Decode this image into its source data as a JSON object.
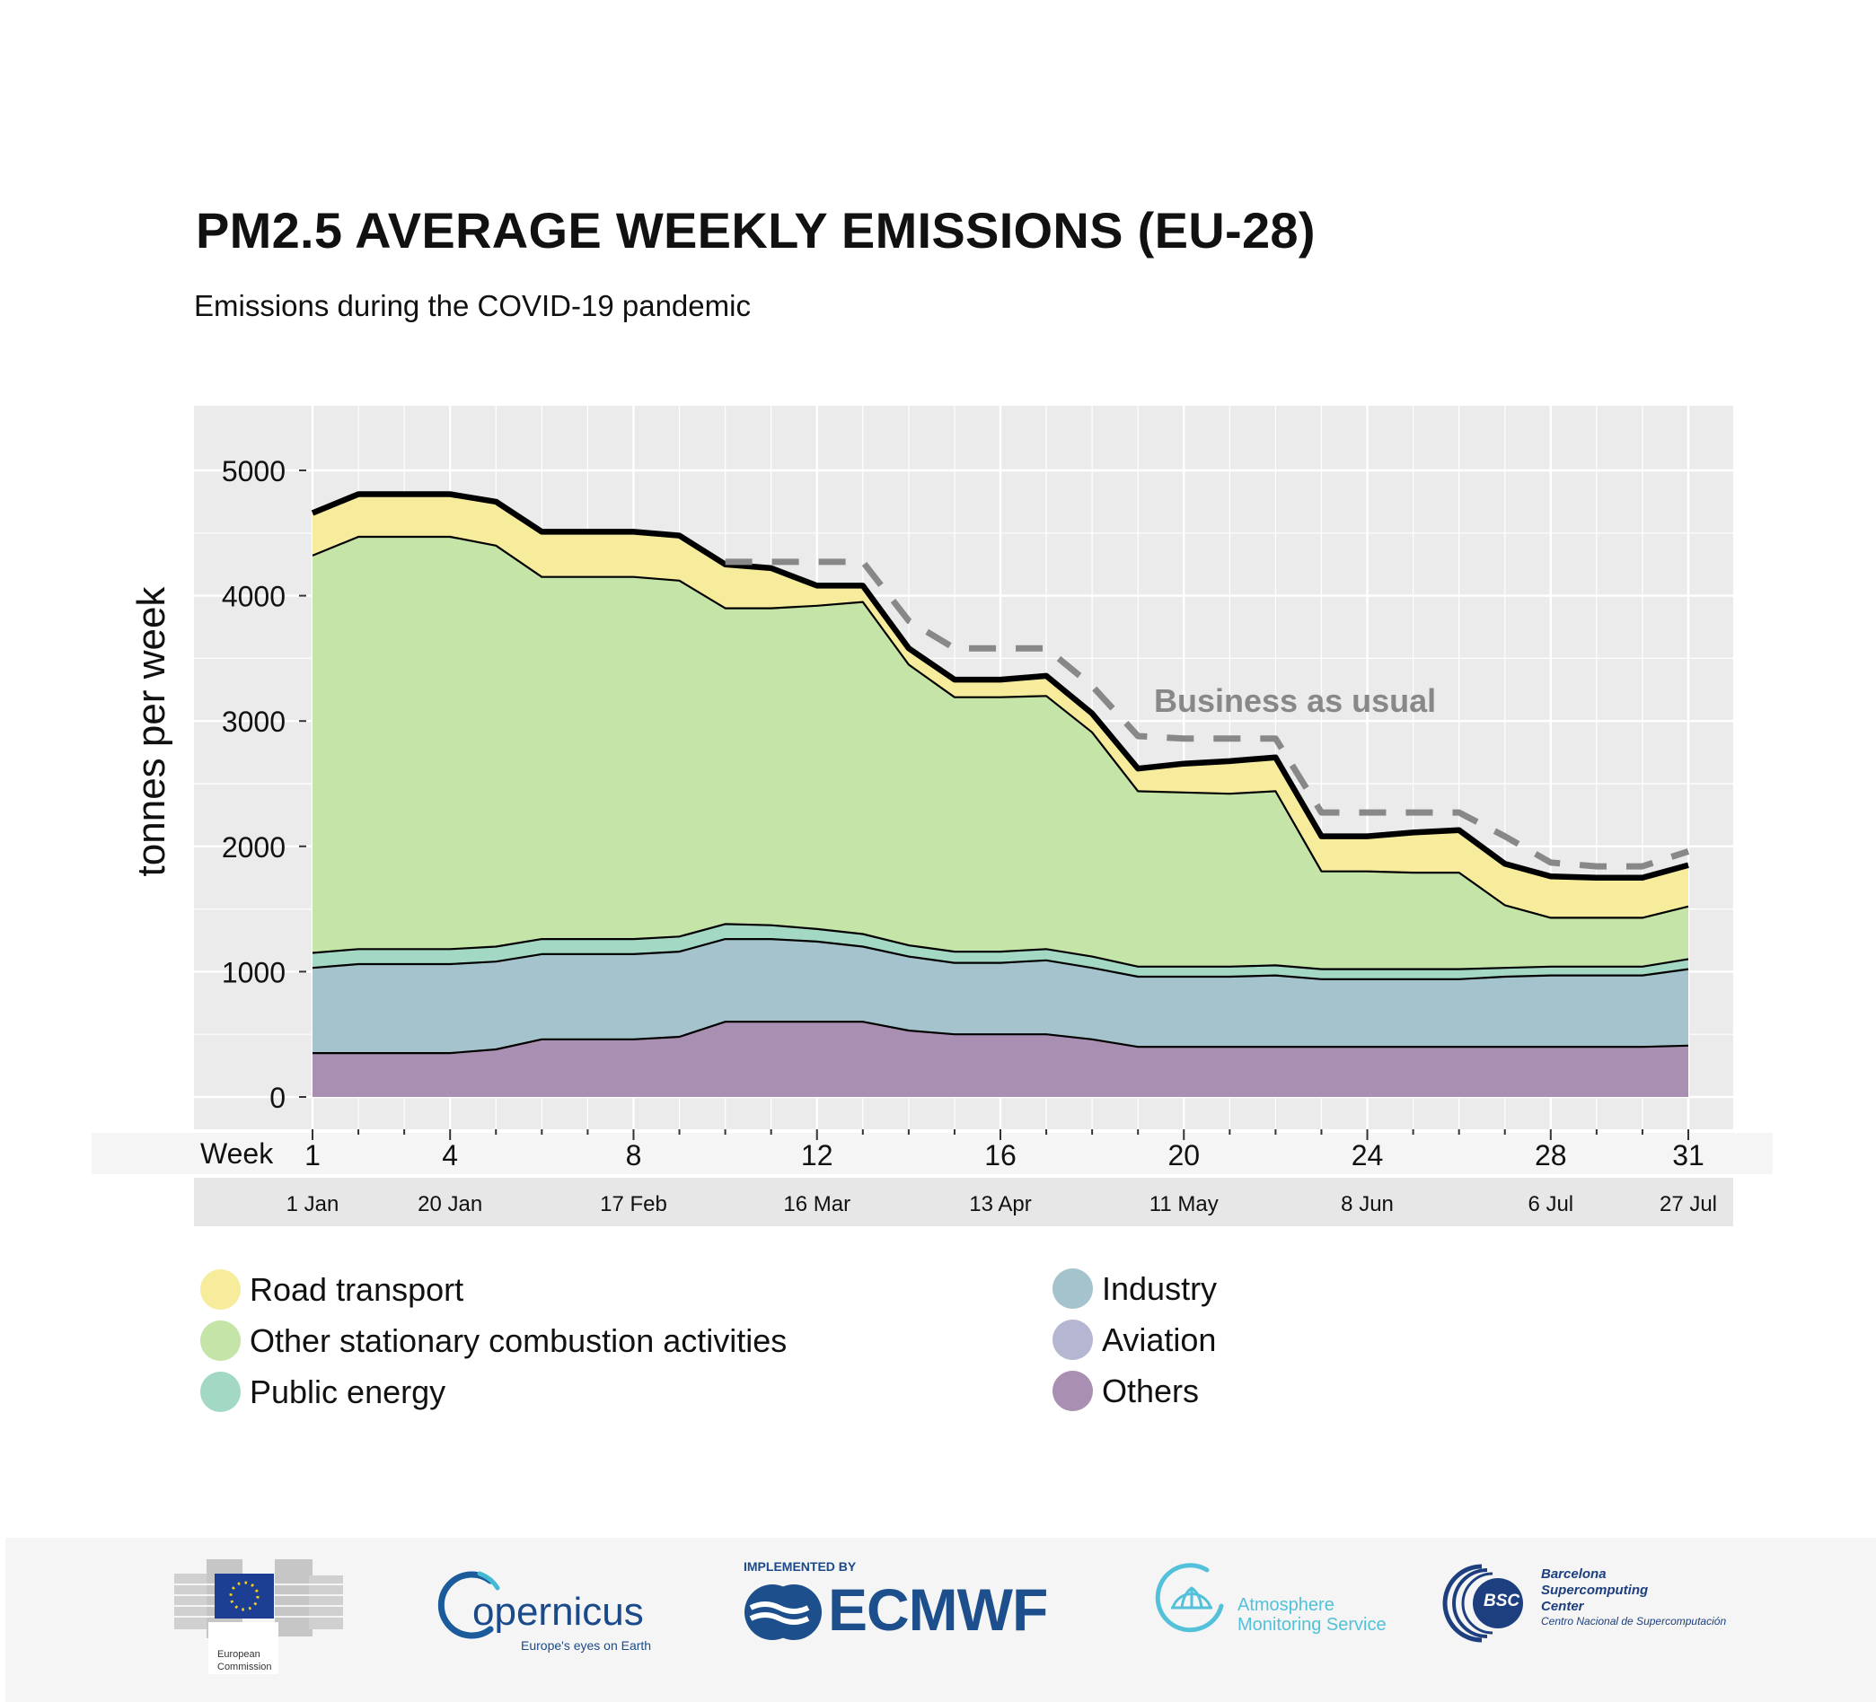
{
  "title": "PM2.5 AVERAGE WEEKLY EMISSIONS (EU-28)",
  "subtitle": "Emissions during the COVID-19 pandemic",
  "colors": {
    "road": "#f7ec9c",
    "other_stationary": "#c4e4a8",
    "public_energy": "#a3d9c4",
    "industry": "#a5c3cc",
    "aviation": "#b4b6d2",
    "others": "#a98fb1",
    "panel": "#ebebeb",
    "bau": "#888888"
  },
  "chart_data": {
    "type": "area",
    "stacked": true,
    "title": "PM2.5 AVERAGE WEEKLY EMISSIONS (EU-28)",
    "subtitle": "Emissions during the COVID-19 pandemic",
    "ylabel": "tonnes per week",
    "xlabel": "Week",
    "ylim": [
      -200,
      5200
    ],
    "yticks": [
      0,
      1000,
      2000,
      3000,
      4000,
      5000
    ],
    "xlim": [
      1,
      31
    ],
    "xticks": [
      1,
      4,
      8,
      12,
      16,
      20,
      24,
      28,
      31
    ],
    "date_labels": [
      {
        "week": 1,
        "label": "1 Jan"
      },
      {
        "week": 4,
        "label": "20 Jan"
      },
      {
        "week": 8,
        "label": "17 Feb"
      },
      {
        "week": 12,
        "label": "16 Mar"
      },
      {
        "week": 16,
        "label": "13 Apr"
      },
      {
        "week": 20,
        "label": "11 May"
      },
      {
        "week": 24,
        "label": "8 Jun"
      },
      {
        "week": 28,
        "label": "6 Jul"
      },
      {
        "week": 31,
        "label": "27 Jul"
      }
    ],
    "grid": true,
    "x": [
      1,
      2,
      3,
      4,
      5,
      6,
      7,
      8,
      9,
      10,
      11,
      12,
      13,
      14,
      15,
      16,
      17,
      18,
      19,
      20,
      21,
      22,
      23,
      24,
      25,
      26,
      27,
      28,
      29,
      30,
      31
    ],
    "series": [
      {
        "name": "Others",
        "color_key": "others",
        "values": [
          350,
          350,
          350,
          350,
          380,
          460,
          460,
          460,
          480,
          600,
          600,
          600,
          600,
          530,
          500,
          500,
          500,
          460,
          400,
          400,
          400,
          400,
          400,
          400,
          400,
          400,
          400,
          400,
          400,
          400,
          410
        ]
      },
      {
        "name": "Industry",
        "color_key": "industry",
        "values": [
          680,
          710,
          710,
          710,
          700,
          680,
          680,
          680,
          680,
          660,
          660,
          640,
          600,
          590,
          570,
          570,
          590,
          570,
          560,
          560,
          560,
          570,
          540,
          540,
          540,
          540,
          560,
          570,
          570,
          570,
          610
        ]
      },
      {
        "name": "Aviation",
        "color_key": "aviation",
        "values": [
          0,
          0,
          0,
          0,
          0,
          0,
          0,
          0,
          0,
          0,
          0,
          0,
          0,
          0,
          0,
          0,
          0,
          0,
          0,
          0,
          0,
          0,
          0,
          0,
          0,
          0,
          0,
          0,
          0,
          0,
          0
        ]
      },
      {
        "name": "Public energy",
        "color_key": "public_energy",
        "values": [
          120,
          120,
          120,
          120,
          120,
          120,
          120,
          120,
          120,
          120,
          110,
          100,
          100,
          90,
          90,
          90,
          90,
          90,
          80,
          80,
          80,
          80,
          80,
          80,
          80,
          80,
          70,
          70,
          70,
          70,
          80
        ]
      },
      {
        "name": "Other stationary combustion activities",
        "color_key": "other_stationary",
        "values": [
          3170,
          3290,
          3290,
          3290,
          3200,
          2890,
          2890,
          2890,
          2840,
          2520,
          2530,
          2580,
          2650,
          2240,
          2030,
          2030,
          2020,
          1790,
          1400,
          1390,
          1380,
          1390,
          780,
          780,
          770,
          770,
          500,
          390,
          390,
          390,
          420
        ]
      },
      {
        "name": "Road transport",
        "color_key": "road",
        "values": [
          340,
          340,
          340,
          340,
          350,
          360,
          360,
          360,
          360,
          350,
          320,
          160,
          130,
          130,
          140,
          140,
          160,
          150,
          180,
          230,
          260,
          270,
          280,
          280,
          320,
          340,
          330,
          330,
          320,
          320,
          330
        ]
      }
    ],
    "business_as_usual": {
      "name": "Business as usual",
      "x": [
        10,
        11,
        12,
        13,
        14,
        15,
        16,
        17,
        18,
        19,
        20,
        21,
        22,
        23,
        24,
        25,
        26,
        27,
        28,
        29,
        30,
        31
      ],
      "values": [
        4270,
        4270,
        4270,
        4270,
        3800,
        3580,
        3580,
        3580,
        3280,
        2880,
        2860,
        2860,
        2860,
        2270,
        2270,
        2270,
        2270,
        2080,
        1870,
        1840,
        1840,
        1960
      ]
    }
  },
  "legend": {
    "left": [
      {
        "label": "Road transport",
        "color_key": "road"
      },
      {
        "label": "Other stationary combustion activities",
        "color_key": "other_stationary"
      },
      {
        "label": "Public energy",
        "color_key": "public_energy"
      }
    ],
    "right": [
      {
        "label": "Industry",
        "color_key": "industry"
      },
      {
        "label": "Aviation",
        "color_key": "aviation"
      },
      {
        "label": "Others",
        "color_key": "others"
      }
    ]
  },
  "footer": {
    "ec": {
      "line1": "European",
      "line2": "Commission"
    },
    "copernicus": {
      "name": "opernicus",
      "tagline": "Europe's eyes on Earth"
    },
    "ecmwf": {
      "implemented_by": "IMPLEMENTED BY",
      "name": "ECMWF"
    },
    "cams": {
      "line1": "Atmosphere",
      "line2": "Monitoring Service"
    },
    "bsc": {
      "badge": "BSC",
      "line1": "Barcelona",
      "line2": "Supercomputing",
      "line3": "Center",
      "line4": "Centro Nacional de Supercomputación"
    }
  }
}
